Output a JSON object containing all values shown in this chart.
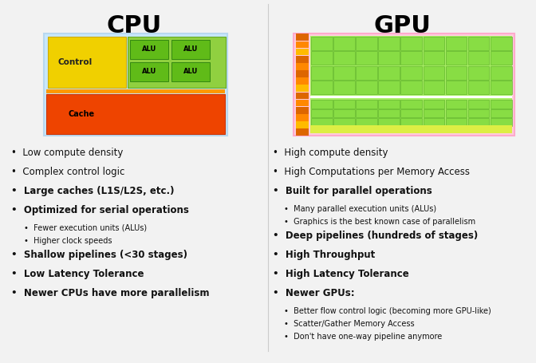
{
  "bg_color": "#f2f2f2",
  "cpu_title": "CPU",
  "gpu_title": "GPU",
  "cpu_diagram": {
    "outer_border": "#b8d8f0",
    "outer_fill": "#c8e8ff",
    "control_color": "#f0d000",
    "alu_area_color": "#90d040",
    "alu_box_color": "#60bb18",
    "orange_strip": "#ff9900",
    "cache_top_color": "#ee4400",
    "cache_bottom_color": "#dd2200",
    "control_label": "Control",
    "alu_labels": [
      "ALU",
      "ALU",
      "ALU",
      "ALU"
    ],
    "cache_label": "Cache"
  },
  "gpu_diagram": {
    "outer_border": "#ffaacc",
    "outer_fill": "#ffccdd",
    "stripe_colors": [
      "#dd6600",
      "#ff9900",
      "#ffcc00"
    ],
    "main_bg": "#aaee66",
    "cell_color": "#88dd44",
    "dram_color": "#ddee44",
    "bottom_strip_color": "#eecc44"
  },
  "cpu_lines": [
    [
      0,
      false,
      "Low compute density"
    ],
    [
      0,
      false,
      "Complex control logic"
    ],
    [
      0,
      true,
      "Large caches (L1S/L2S, etc.)"
    ],
    [
      0,
      true,
      "Optimized for serial operations"
    ],
    [
      1,
      false,
      "Fewer execution units (ALUs)"
    ],
    [
      1,
      false,
      "Higher clock speeds"
    ],
    [
      0,
      true,
      "Shallow pipelines (<30 stages)"
    ],
    [
      0,
      true,
      "Low Latency Tolerance"
    ],
    [
      0,
      true,
      "Newer CPUs have more parallelism"
    ]
  ],
  "gpu_lines": [
    [
      0,
      false,
      "High compute density"
    ],
    [
      0,
      false,
      "High Computations per Memory Access"
    ],
    [
      0,
      true,
      "Built for parallel operations"
    ],
    [
      1,
      false,
      "Many parallel execution units (ALUs)"
    ],
    [
      1,
      false,
      "Graphics is the best known case of parallelism"
    ],
    [
      0,
      true,
      "Deep pipelines (hundreds of stages)"
    ],
    [
      0,
      true,
      "High Throughput"
    ],
    [
      0,
      true,
      "High Latency Tolerance"
    ],
    [
      0,
      true,
      "Newer GPUs:"
    ],
    [
      1,
      false,
      "Better flow control logic (becoming more GPU-like)"
    ],
    [
      1,
      false,
      "Scatter/Gather Memory Access"
    ],
    [
      1,
      false,
      "Don't have one-way pipeline anymore"
    ]
  ]
}
